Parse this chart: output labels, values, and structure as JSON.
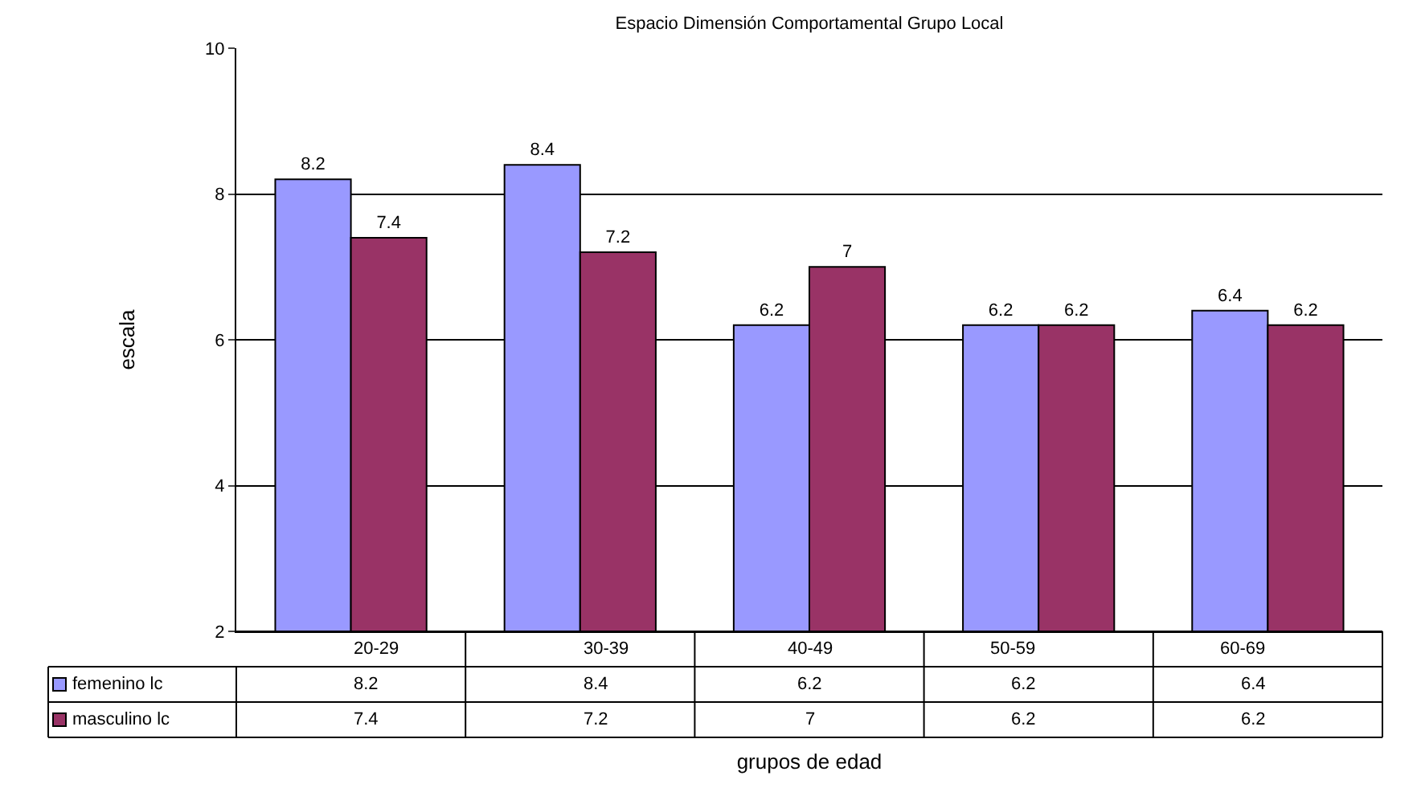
{
  "chart_data": {
    "type": "bar",
    "title": "Espacio Dimensión Comportamental Grupo Local",
    "xlabel": "grupos de edad",
    "ylabel": "escala",
    "categories": [
      "20-29",
      "30-39",
      "40-49",
      "50-59",
      "60-69"
    ],
    "series": [
      {
        "name": "femenino lc",
        "color": "#9999ff",
        "values": [
          8.2,
          8.4,
          6.2,
          6.2,
          6.4
        ]
      },
      {
        "name": "masculino lc",
        "color": "#993366",
        "values": [
          7.4,
          7.2,
          7,
          6.2,
          6.2
        ]
      }
    ],
    "annotations": [
      "8.2",
      "8.4",
      "6.2",
      "6.2",
      "6.4",
      "7.4",
      "7.2",
      "7",
      "6.2",
      "6.2"
    ],
    "ylim": [
      2,
      10
    ],
    "yticks": [
      2,
      4,
      6,
      8,
      10
    ],
    "grid": "y",
    "data_labels": true,
    "legend": "bottom left"
  }
}
